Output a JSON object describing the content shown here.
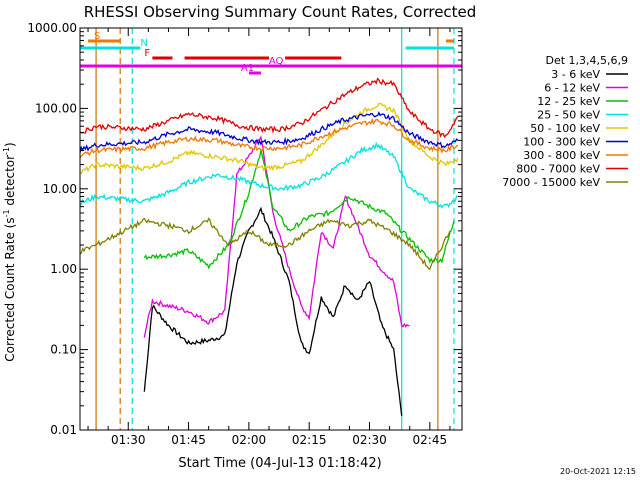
{
  "chart_data": {
    "type": "line",
    "title": "RHESSI Observing Summary Count Rates, Corrected",
    "xlabel": "Start Time (04-Jul-13 01:18:42)",
    "ylabel": "Corrected Count Rate (s",
    "ylabel_sup": "-1",
    "ylabel_tail": " detector",
    "ylabel_sup2": "-1",
    "ylabel_end": ")",
    "yscale": "log",
    "ylim": [
      0.01,
      1000
    ],
    "xlim": [
      "01:18:42",
      "02:53:00"
    ],
    "yticks": [
      {
        "v": 0.01,
        "label": "0.01"
      },
      {
        "v": 0.1,
        "label": "0.10"
      },
      {
        "v": 1,
        "label": "1.00"
      },
      {
        "v": 10,
        "label": "10.00"
      },
      {
        "v": 100,
        "label": "100.00"
      },
      {
        "v": 1000,
        "label": "1000.00"
      }
    ],
    "xticks": [
      "01:30",
      "01:45",
      "02:00",
      "02:15",
      "02:30",
      "02:45"
    ],
    "legend_title": "Det 1,3,4,5,6,9",
    "legend_position": "right",
    "footer_timestamp": "20-Oct-2021 12:15",
    "series": [
      {
        "name": "3 - 6 keV",
        "color": "#000000",
        "x": [
          "01:34",
          "01:36",
          "01:40",
          "01:45",
          "01:50",
          "01:54",
          "01:57",
          "02:00",
          "02:03",
          "02:06",
          "02:10",
          "02:13",
          "02:15",
          "02:18",
          "02:21",
          "02:24",
          "02:27",
          "02:30",
          "02:33",
          "02:36",
          "02:38"
        ],
        "y": [
          0.03,
          0.35,
          0.2,
          0.12,
          0.13,
          0.15,
          1.2,
          3.0,
          5.5,
          2.5,
          0.7,
          0.12,
          0.09,
          0.45,
          0.25,
          0.65,
          0.4,
          0.7,
          0.2,
          0.1,
          0.015
        ]
      },
      {
        "name": "6 - 12 keV",
        "color": "#e000e0",
        "x": [
          "01:34",
          "01:36",
          "01:40",
          "01:45",
          "01:50",
          "01:54",
          "01:57",
          "02:00",
          "02:03",
          "02:06",
          "02:10",
          "02:13",
          "02:15",
          "02:18",
          "02:21",
          "02:24",
          "02:27",
          "02:30",
          "02:33",
          "02:36",
          "02:38",
          "02:40"
        ],
        "y": [
          0.15,
          0.4,
          0.35,
          0.3,
          0.22,
          0.3,
          15,
          25,
          45,
          5,
          1.0,
          0.35,
          0.25,
          3.0,
          1.8,
          8.0,
          3.5,
          1.5,
          1.0,
          0.7,
          0.2,
          0.2
        ]
      },
      {
        "name": "12 - 25 keV",
        "color": "#00c000",
        "x": [
          "01:34",
          "01:40",
          "01:45",
          "01:50",
          "01:55",
          "02:00",
          "02:03",
          "02:06",
          "02:10",
          "02:15",
          "02:20",
          "02:25",
          "02:30",
          "02:34",
          "02:38",
          "02:45",
          "02:48",
          "02:51"
        ],
        "y": [
          1.4,
          1.5,
          1.7,
          1.1,
          2.0,
          9.0,
          30,
          6.0,
          3.0,
          4.5,
          5.0,
          8.0,
          6.0,
          5.0,
          3.0,
          1.3,
          1.3,
          4.0
        ]
      },
      {
        "name": "25 - 50 keV",
        "color": "#00e0e0",
        "x": [
          "01:16",
          "01:22",
          "01:34",
          "01:40",
          "01:45",
          "01:52",
          "01:58",
          "02:03",
          "02:08",
          "02:13",
          "02:18",
          "02:23",
          "02:28",
          "02:32",
          "02:36",
          "02:40",
          "02:45",
          "02:49",
          "02:52"
        ],
        "y": [
          6.0,
          8.0,
          7.0,
          9.0,
          12,
          15,
          13,
          11,
          10,
          11,
          14,
          20,
          30,
          35,
          25,
          10,
          7.0,
          6.0,
          8.0
        ]
      },
      {
        "name": "50 - 100 keV",
        "color": "#e0c800",
        "x": [
          "01:16",
          "01:22",
          "01:34",
          "01:40",
          "01:45",
          "01:52",
          "01:58",
          "02:03",
          "02:08",
          "02:13",
          "02:18",
          "02:23",
          "02:28",
          "02:32",
          "02:36",
          "02:40",
          "02:45",
          "02:49",
          "02:52"
        ],
        "y": [
          14,
          20,
          18,
          22,
          28,
          25,
          22,
          18,
          19,
          22,
          35,
          60,
          90,
          110,
          95,
          40,
          25,
          20,
          24
        ]
      },
      {
        "name": "100 - 300 keV",
        "color": "#0000d0",
        "x": [
          "01:16",
          "01:22",
          "01:34",
          "01:40",
          "01:45",
          "01:52",
          "01:58",
          "02:03",
          "02:08",
          "02:13",
          "02:18",
          "02:23",
          "02:28",
          "02:32",
          "02:36",
          "02:40",
          "02:45",
          "02:49",
          "02:52"
        ],
        "y": [
          28,
          35,
          38,
          48,
          55,
          50,
          42,
          38,
          38,
          42,
          55,
          70,
          80,
          85,
          75,
          48,
          38,
          34,
          40
        ]
      },
      {
        "name": "300 - 800 keV",
        "color": "#f07800",
        "x": [
          "01:16",
          "01:22",
          "01:34",
          "01:40",
          "01:45",
          "01:52",
          "01:58",
          "02:03",
          "02:08",
          "02:13",
          "02:18",
          "02:23",
          "02:28",
          "02:32",
          "02:36",
          "02:40",
          "02:45",
          "02:49",
          "02:52"
        ],
        "y": [
          24,
          30,
          32,
          38,
          42,
          40,
          34,
          32,
          32,
          35,
          45,
          55,
          65,
          70,
          62,
          40,
          32,
          30,
          35
        ]
      },
      {
        "name": "800 - 7000 keV",
        "color": "#e00000",
        "x": [
          "01:16",
          "01:22",
          "01:34",
          "01:40",
          "01:45",
          "01:52",
          "01:58",
          "02:03",
          "02:08",
          "02:13",
          "02:18",
          "02:23",
          "02:28",
          "02:32",
          "02:36",
          "02:40",
          "02:45",
          "02:49",
          "02:52"
        ],
        "y": [
          45,
          60,
          55,
          70,
          85,
          75,
          60,
          55,
          55,
          65,
          95,
          140,
          190,
          220,
          200,
          90,
          55,
          45,
          80
        ]
      },
      {
        "name": "7000 - 15000 keV",
        "color": "#808000",
        "x": [
          "01:16",
          "01:22",
          "01:34",
          "01:40",
          "01:45",
          "01:50",
          "01:55",
          "02:00",
          "02:05",
          "02:10",
          "02:15",
          "02:20",
          "02:25",
          "02:30",
          "02:35",
          "02:40",
          "02:45",
          "02:50"
        ],
        "y": [
          1.5,
          2.0,
          4.0,
          3.5,
          3.0,
          4.0,
          2.0,
          3.0,
          2.0,
          2.0,
          3.0,
          4.0,
          3.5,
          4.0,
          3.0,
          2.0,
          1.0,
          3.0
        ]
      }
    ],
    "flags": [
      {
        "label": "S",
        "color": "#f07800",
        "segments": [
          [
            "01:20",
            "01:28"
          ],
          [
            "02:49",
            "02:51"
          ]
        ]
      },
      {
        "label": "N",
        "color": "#00e0e0",
        "segments": [
          [
            "01:16",
            "01:33"
          ],
          [
            "02:39",
            "02:51"
          ]
        ]
      },
      {
        "label": "F",
        "color": "#e00000",
        "segments": [
          [
            "01:36",
            "01:41"
          ],
          [
            "01:44",
            "02:05"
          ],
          [
            "02:09",
            "02:23"
          ]
        ]
      },
      {
        "label": "AQ",
        "color": "#e000e0",
        "segments": [
          [
            "01:16",
            "02:53"
          ]
        ]
      },
      {
        "label": "A1",
        "color": "#e000e0",
        "segments": [
          [
            "02:00",
            "02:03"
          ]
        ]
      }
    ],
    "vlines": [
      {
        "x": "01:22",
        "color": "#d07000",
        "style": "solid"
      },
      {
        "x": "01:28",
        "color": "#d07000",
        "style": "dashed"
      },
      {
        "x": "01:31",
        "color": "#00e0e0",
        "style": "dashed"
      },
      {
        "x": "02:38",
        "color": "#00e0e0",
        "style": "solid"
      },
      {
        "x": "02:47",
        "color": "#d07000",
        "style": "solid"
      },
      {
        "x": "02:51",
        "color": "#00e0e0",
        "style": "dashed"
      }
    ]
  }
}
